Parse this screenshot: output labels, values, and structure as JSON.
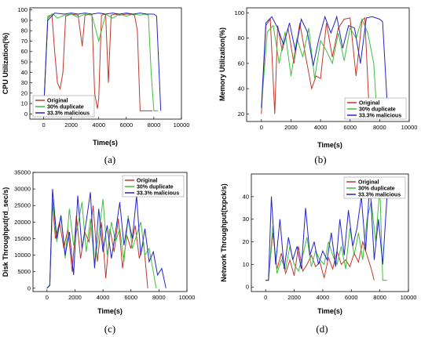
{
  "figure": {
    "panels": [
      {
        "id": "a",
        "label": "(a)",
        "ylabel": "CPU Utilization(%)",
        "xlabel": "Time(s)"
      },
      {
        "id": "b",
        "label": "(b)",
        "ylabel": "Memory Utilization(%)",
        "xlabel": "Time(s)"
      },
      {
        "id": "c",
        "label": "(c)",
        "ylabel": "Disk Throughput(rd_sec/s)",
        "xlabel": "Time(s)"
      },
      {
        "id": "d",
        "label": "(d)",
        "ylabel": "Network Throughput(txpck/s)",
        "xlabel": "Time(s)"
      }
    ]
  },
  "colors": {
    "Original": "#c0392b",
    "30% duplicate": "#3fbf3f",
    "33.3% malicious": "#2424c8"
  },
  "chart_data": [
    {
      "type": "line",
      "title": "",
      "xlabel": "Time(s)",
      "ylabel": "CPU Utilization(%)",
      "xlim": [
        -1000,
        10000
      ],
      "ylim": [
        -5,
        102
      ],
      "xticks": [
        0,
        2000,
        4000,
        6000,
        8000,
        10000
      ],
      "yticks": [
        0,
        10,
        20,
        30,
        40,
        50,
        60,
        70,
        80,
        90,
        100
      ],
      "legend": "bottom-left",
      "series": [
        {
          "name": "Original",
          "x": [
            0,
            300,
            600,
            800,
            1000,
            1200,
            1400,
            1600,
            2000,
            2500,
            2800,
            3000,
            3500,
            3700,
            3900,
            4000,
            4200,
            4500,
            4700,
            4900,
            5200,
            5500,
            6000,
            6300,
            6600,
            6800,
            7000,
            7200,
            7500,
            7900
          ],
          "y": [
            2,
            92,
            96,
            60,
            30,
            24,
            40,
            94,
            96,
            95,
            65,
            95,
            96,
            20,
            5,
            15,
            95,
            96,
            30,
            95,
            96,
            95,
            96,
            96,
            95,
            80,
            3,
            3,
            3,
            3
          ]
        },
        {
          "name": "30% duplicate",
          "x": [
            0,
            300,
            700,
            1000,
            1500,
            2000,
            2500,
            3000,
            3500,
            4000,
            4500,
            5000,
            5500,
            6000,
            6500,
            7000,
            7300,
            7600,
            7800,
            8000,
            8300
          ],
          "y": [
            2,
            94,
            96,
            92,
            95,
            96,
            93,
            96,
            95,
            70,
            96,
            92,
            96,
            94,
            96,
            95,
            96,
            95,
            40,
            3,
            3
          ]
        },
        {
          "name": "33.3% malicious",
          "x": [
            0,
            300,
            800,
            1500,
            2000,
            2500,
            3000,
            3500,
            4000,
            4500,
            5000,
            5500,
            6000,
            6500,
            7000,
            7500,
            8000,
            8200,
            8500
          ],
          "y": [
            2,
            90,
            97,
            96,
            97,
            96,
            97,
            96,
            97,
            96,
            97,
            96,
            97,
            96,
            97,
            96,
            96,
            94,
            3
          ]
        }
      ]
    },
    {
      "type": "line",
      "title": "",
      "xlabel": "Time(s)",
      "ylabel": "Memory Utilization(%)",
      "xlim": [
        -1000,
        10000
      ],
      "ylim": [
        14,
        104
      ],
      "xticks": [
        0,
        2000,
        4000,
        6000,
        8000,
        10000
      ],
      "yticks": [
        20,
        40,
        60,
        80,
        100
      ],
      "legend": "bottom-right",
      "series": [
        {
          "name": "Original",
          "x": [
            0,
            300,
            600,
            900,
            1100,
            1400,
            1800,
            2200,
            2600,
            3000,
            3400,
            3700,
            4000,
            4400,
            4800,
            5200,
            5600,
            6000,
            6400,
            6800,
            7000,
            7300
          ],
          "y": [
            20,
            90,
            95,
            20,
            90,
            70,
            88,
            60,
            92,
            65,
            40,
            50,
            48,
            92,
            65,
            88,
            95,
            96,
            50,
            94,
            96,
            20
          ]
        },
        {
          "name": "30% duplicate",
          "x": [
            0,
            400,
            800,
            1200,
            1600,
            2000,
            2400,
            2800,
            3200,
            3600,
            4000,
            4400,
            4800,
            5200,
            5600,
            6000,
            6400,
            6800,
            7200,
            7600,
            7800
          ],
          "y": [
            25,
            85,
            90,
            60,
            85,
            50,
            80,
            65,
            88,
            48,
            78,
            70,
            60,
            84,
            62,
            88,
            80,
            95,
            84,
            60,
            22
          ]
        },
        {
          "name": "33.3% malicious",
          "x": [
            0,
            300,
            700,
            1100,
            1500,
            1900,
            2300,
            2700,
            3100,
            3500,
            3900,
            4300,
            4700,
            5100,
            5500,
            5900,
            6300,
            6700,
            7100,
            7500,
            8000,
            8200,
            8500
          ],
          "y": [
            25,
            92,
            97,
            88,
            75,
            92,
            70,
            95,
            85,
            58,
            80,
            97,
            84,
            97,
            72,
            90,
            88,
            60,
            96,
            97,
            95,
            93,
            30
          ]
        }
      ]
    },
    {
      "type": "line",
      "title": "",
      "xlabel": "Time(s)",
      "ylabel": "Disk Throughput(rd_sec/s)",
      "xlim": [
        -1000,
        10000
      ],
      "ylim": [
        -1000,
        35000
      ],
      "xticks": [
        0,
        2000,
        4000,
        6000,
        8000,
        10000
      ],
      "yticks": [
        0,
        5000,
        10000,
        15000,
        20000,
        25000,
        30000,
        35000
      ],
      "legend": "top-right",
      "series": [
        {
          "name": "Original",
          "x": [
            0,
            200,
            400,
            600,
            900,
            1200,
            1500,
            1800,
            2100,
            2400,
            2700,
            3000,
            3300,
            3600,
            3900,
            4200,
            4500,
            4800,
            5100,
            5400,
            5700,
            6000,
            6300,
            6600,
            6900,
            7200
          ],
          "y": [
            0,
            1000,
            26000,
            15000,
            20000,
            12000,
            18000,
            5000,
            22000,
            9000,
            17000,
            14000,
            25000,
            8000,
            20000,
            3000,
            18000,
            11000,
            21000,
            6000,
            16000,
            12000,
            19000,
            9000,
            14000,
            0
          ]
        },
        {
          "name": "30% duplicate",
          "x": [
            0,
            200,
            400,
            700,
            1000,
            1300,
            1600,
            1900,
            2200,
            2500,
            2800,
            3100,
            3400,
            3700,
            4000,
            4300,
            4600,
            4900,
            5200,
            5500,
            5800,
            6100,
            6400,
            6700,
            7000,
            7300,
            7600,
            7800
          ],
          "y": [
            0,
            1000,
            27000,
            14000,
            22000,
            9000,
            24000,
            13000,
            19000,
            26000,
            11000,
            21000,
            7000,
            16000,
            27000,
            10000,
            20000,
            14000,
            18000,
            8000,
            22000,
            12000,
            16000,
            20000,
            10000,
            12000,
            5000,
            0
          ]
        },
        {
          "name": "33.3% malicious",
          "x": [
            0,
            200,
            400,
            700,
            1000,
            1300,
            1600,
            1900,
            2200,
            2500,
            2800,
            3100,
            3400,
            3700,
            4000,
            4300,
            4600,
            4900,
            5200,
            5500,
            5800,
            6100,
            6400,
            6700,
            7000,
            7300,
            7600,
            7900,
            8200,
            8500
          ],
          "y": [
            0,
            800,
            30000,
            15000,
            22000,
            10000,
            17000,
            4000,
            28000,
            12000,
            20000,
            29000,
            6000,
            24000,
            11000,
            19000,
            9000,
            17000,
            26000,
            13000,
            21000,
            15000,
            28000,
            10000,
            18000,
            8000,
            11000,
            4000,
            6000,
            0
          ]
        }
      ]
    },
    {
      "type": "line",
      "title": "",
      "xlabel": "Time(s)",
      "ylabel": "Network Throughput(txpck/s)",
      "xlim": [
        -1000,
        10000
      ],
      "ylim": [
        -2,
        50
      ],
      "xticks": [
        0,
        2000,
        4000,
        6000,
        8000,
        10000
      ],
      "yticks": [
        0,
        10,
        20,
        30,
        40
      ],
      "legend": "top-right",
      "series": [
        {
          "name": "Original",
          "x": [
            0,
            200,
            500,
            800,
            1100,
            1400,
            1700,
            2000,
            2300,
            2600,
            2900,
            3200,
            3500,
            3800,
            4100,
            4400,
            4700,
            5000,
            5300,
            5600,
            5900,
            6200,
            6500,
            6800,
            7100,
            7400,
            7600
          ],
          "y": [
            3,
            3,
            24,
            8,
            15,
            6,
            12,
            5,
            18,
            7,
            10,
            14,
            9,
            11,
            4,
            13,
            8,
            16,
            10,
            12,
            9,
            15,
            11,
            20,
            14,
            8,
            3
          ]
        },
        {
          "name": "30% duplicate",
          "x": [
            0,
            200,
            500,
            800,
            1100,
            1400,
            1700,
            2000,
            2300,
            2600,
            2900,
            3200,
            3500,
            3800,
            4100,
            4400,
            4700,
            5000,
            5300,
            5600,
            5900,
            6200,
            6500,
            6800,
            7100,
            7400,
            7700,
            8000,
            8200,
            8500
          ],
          "y": [
            3,
            3,
            27,
            6,
            12,
            8,
            18,
            10,
            7,
            14,
            22,
            9,
            16,
            12,
            10,
            20,
            14,
            10,
            18,
            8,
            26,
            14,
            24,
            12,
            30,
            38,
            20,
            44,
            3,
            3
          ]
        },
        {
          "name": "33.3% malicious",
          "x": [
            0,
            200,
            400,
            700,
            1000,
            1300,
            1600,
            1900,
            2200,
            2500,
            2800,
            3100,
            3400,
            3700,
            4000,
            4300,
            4600,
            4900,
            5200,
            5500,
            5800,
            6100,
            6400,
            6700,
            7000,
            7300,
            7600,
            7900,
            8200,
            8500
          ],
          "y": [
            3,
            3,
            40,
            10,
            30,
            8,
            22,
            12,
            18,
            8,
            35,
            14,
            20,
            10,
            16,
            12,
            24,
            9,
            30,
            14,
            34,
            18,
            26,
            40,
            16,
            47,
            12,
            30,
            10,
            40
          ]
        }
      ]
    }
  ]
}
